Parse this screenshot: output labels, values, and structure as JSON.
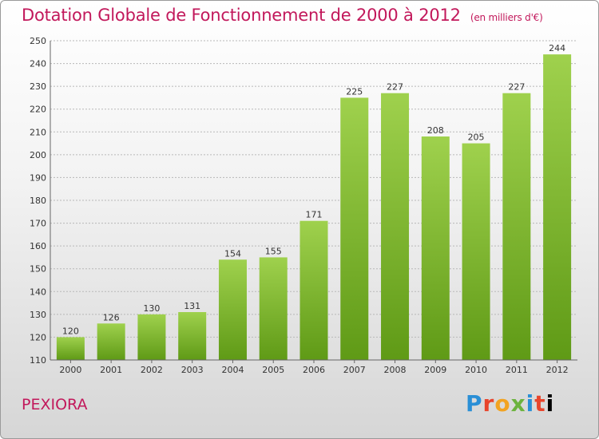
{
  "title": "Dotation Globale de Fonctionnement de 2000 à 2012",
  "unit": "(en milliers d'€)",
  "commune": "PEXIORA",
  "logo_text": "Proxiti",
  "colors": {
    "title": "#c2185b",
    "bar_top": "#9fd14d",
    "bar_bottom": "#5f9a16"
  },
  "chart_data": {
    "type": "bar",
    "title": "Dotation Globale de Fonctionnement de 2000 à 2012",
    "xlabel": "",
    "ylabel": "",
    "categories": [
      "2000",
      "2001",
      "2002",
      "2003",
      "2004",
      "2005",
      "2006",
      "2007",
      "2008",
      "2009",
      "2010",
      "2011",
      "2012"
    ],
    "values": [
      120,
      126,
      130,
      131,
      154,
      155,
      171,
      225,
      227,
      208,
      205,
      227,
      244
    ],
    "ylim": [
      110,
      250
    ],
    "yticks": [
      110,
      120,
      130,
      140,
      150,
      160,
      170,
      180,
      190,
      200,
      210,
      220,
      230,
      240,
      250
    ],
    "grid": true
  }
}
